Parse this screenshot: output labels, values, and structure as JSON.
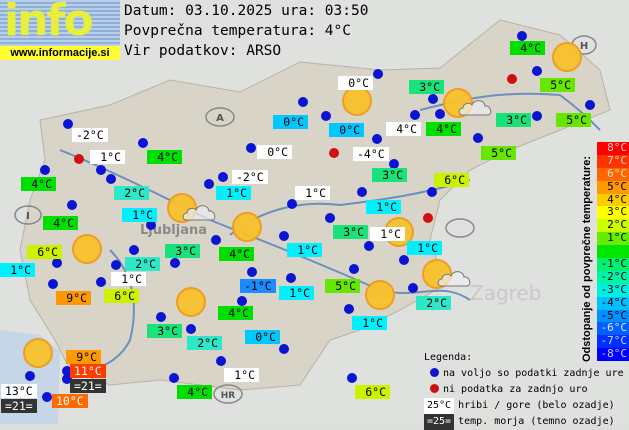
{
  "logo": {
    "word": "info",
    "url": "www.informacije.si"
  },
  "header": {
    "date_line": "Datum: 03.10.2025 ura: 03:50",
    "avg_line": "Povprečna temperatura: 4°C",
    "source_line": "Vir podatkov: ARSO"
  },
  "colors": {
    "w": "#ffffff",
    "g4": "#00e000",
    "g3": "#19e27a",
    "g2": "#2de8c8",
    "c1": "#00f0ff",
    "b0": "#00c8ff",
    "bm1": "#1a8cff",
    "g5": "#66e600",
    "y6": "#ccf200",
    "o9": "#ff9900",
    "o10": "#ff6a00",
    "r11": "#ff3c00",
    "sea": "#333333",
    "dot_ok": "#0a14d2",
    "dot_missing": "#d01010"
  },
  "stations": [
    {
      "t": "0°C",
      "c": "w"
    },
    {
      "t": "3°C",
      "c": "g3"
    },
    {
      "t": "4°C",
      "c": "g4"
    },
    {
      "t": "5°C",
      "c": "g5"
    },
    {
      "t": "5°C",
      "c": "g5"
    },
    {
      "t": "3°C",
      "c": "g3"
    },
    {
      "t": "4°C",
      "c": "w"
    },
    {
      "t": "4°C",
      "c": "g4"
    },
    {
      "t": "5°C",
      "c": "g5"
    },
    {
      "t": "0°C",
      "c": "b0"
    },
    {
      "t": "-4°C",
      "c": "w"
    },
    {
      "t": "3°C",
      "c": "g3"
    },
    {
      "t": "6°C",
      "c": "y6"
    },
    {
      "t": "1°C",
      "c": "c1"
    },
    {
      "t": "1°C",
      "c": "w"
    },
    {
      "t": "-2°C",
      "c": "w"
    },
    {
      "t": "1°C",
      "c": "w"
    },
    {
      "t": "2°C",
      "c": "g2"
    },
    {
      "t": "4°C",
      "c": "g4"
    },
    {
      "t": "4°C",
      "c": "g4"
    },
    {
      "t": "4°C",
      "c": "g4"
    },
    {
      "t": "1°C",
      "c": "c1"
    },
    {
      "t": "0°C",
      "c": "w"
    },
    {
      "t": "-2°C",
      "c": "w"
    },
    {
      "t": "1°C",
      "c": "c1"
    },
    {
      "t": "0°C",
      "c": "b0"
    },
    {
      "t": "6°C",
      "c": "y6"
    },
    {
      "t": "9°C",
      "c": "o9"
    },
    {
      "t": "2°C",
      "c": "g2"
    },
    {
      "t": "1°C",
      "c": "w"
    },
    {
      "t": "6°C",
      "c": "y6"
    },
    {
      "t": "3°C",
      "c": "g3"
    },
    {
      "t": "4°C",
      "c": "g4"
    },
    {
      "t": "1°C",
      "c": "c1"
    },
    {
      "t": "-1°C",
      "c": "bm1"
    },
    {
      "t": "1°C",
      "c": "c1"
    },
    {
      "t": "4°C",
      "c": "g4"
    },
    {
      "t": "3°C",
      "c": "g3"
    },
    {
      "t": "2°C",
      "c": "g2"
    },
    {
      "t": "0°C",
      "c": "b0"
    },
    {
      "t": "1°C",
      "c": "w"
    },
    {
      "t": "4°C",
      "c": "g4"
    },
    {
      "t": "9°C",
      "c": "o9"
    },
    {
      "t": "11°C",
      "c": "r11"
    },
    {
      "t": "=21=",
      "c": "sea"
    },
    {
      "t": "13°C",
      "c": "w"
    },
    {
      "t": "=21=",
      "c": "sea"
    },
    {
      "t": "10°C",
      "c": "o10"
    },
    {
      "t": "3°C",
      "c": "g3"
    },
    {
      "t": "1°C",
      "c": "w"
    },
    {
      "t": "1°C",
      "c": "c1"
    },
    {
      "t": "5°C",
      "c": "g5"
    },
    {
      "t": "2°C",
      "c": "g2"
    },
    {
      "t": "1°C",
      "c": "c1"
    },
    {
      "t": "6°C",
      "c": "y6"
    },
    {
      "t": "1°C",
      "c": "c1"
    }
  ],
  "scale": {
    "title": "Odstopanje od povprečne temperature:",
    "rows": [
      {
        "t": "8°C",
        "c": "#ff0000",
        "f": "#ffd0d0"
      },
      {
        "t": "7°C",
        "c": "#ff3300",
        "f": "#ffd0c0"
      },
      {
        "t": "6°C",
        "c": "#ff6600",
        "f": "#ffe0c0"
      },
      {
        "t": "5°C",
        "c": "#ff9900",
        "f": "#000"
      },
      {
        "t": "4°C",
        "c": "#ffcc00",
        "f": "#000"
      },
      {
        "t": "3°C",
        "c": "#ffff00",
        "f": "#000"
      },
      {
        "t": "2°C",
        "c": "#ccff00",
        "f": "#000"
      },
      {
        "t": "1°C",
        "c": "#66ee00",
        "f": "#000"
      },
      {
        "t": "",
        "c": "#00e600",
        "f": "#000"
      },
      {
        "t": "-1°C",
        "c": "#00f070",
        "f": "#000"
      },
      {
        "t": "-2°C",
        "c": "#00f4a8",
        "f": "#000"
      },
      {
        "t": "-3°C",
        "c": "#00f0e0",
        "f": "#000"
      },
      {
        "t": "-4°C",
        "c": "#00c0ff",
        "f": "#000"
      },
      {
        "t": "-5°C",
        "c": "#0090ff",
        "f": "#000"
      },
      {
        "t": "-6°C",
        "c": "#0060ff",
        "f": "#e0e8ff"
      },
      {
        "t": "-7°C",
        "c": "#0030ff",
        "f": "#c8d4ff"
      },
      {
        "t": "-8°C",
        "c": "#0000ff",
        "f": "#d0d0ff"
      }
    ]
  },
  "legend": {
    "title": "Legenda:",
    "available": "na voljo so podatki zadnje ure",
    "missing": "ni podatka za zadnjo uro",
    "mountain_sample": "25°C",
    "mountain_text": "hribi / gore (belo ozadje)",
    "sea_sample": "=25=",
    "sea_text": "temp. morja (temno ozadje)"
  },
  "map_labels": {
    "austria": "A",
    "italy": "I",
    "croatia": "HR",
    "hungary": "H",
    "ljubljana": "Ljubljana",
    "zagreb": "Zagreb"
  }
}
